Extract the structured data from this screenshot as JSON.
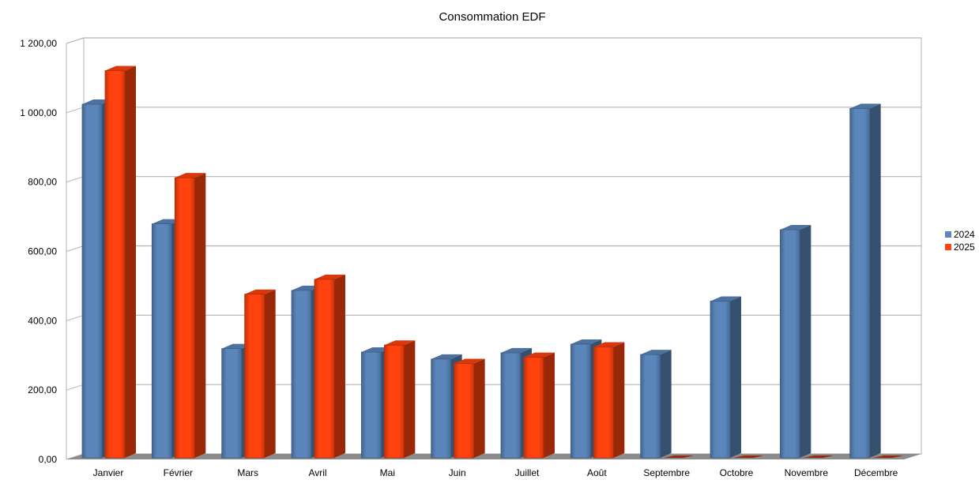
{
  "chart_data": {
    "type": "bar",
    "title": "Consommation EDF",
    "xlabel": "",
    "ylabel": "",
    "categories": [
      "Janvier",
      "Février",
      "Mars",
      "Avril",
      "Mai",
      "Juin",
      "Juillet",
      "Août",
      "Septembre",
      "Octobre",
      "Novembre",
      "Décembre"
    ],
    "series": [
      {
        "name": "2024",
        "color": "#5a86bb",
        "values": [
          1020,
          675,
          315,
          483,
          305,
          285,
          303,
          328,
          298,
          452,
          658,
          1008
        ]
      },
      {
        "name": "2025",
        "color": "#ff420e",
        "values": [
          1117,
          808,
          472,
          515,
          325,
          272,
          290,
          320,
          0,
          0,
          0,
          0
        ]
      }
    ],
    "ylim": [
      0,
      1200
    ],
    "yticks": [
      0,
      200,
      400,
      600,
      800,
      1000,
      1200
    ],
    "ytick_labels": [
      "0,00",
      "200,00",
      "400,00",
      "600,00",
      "800,00",
      "1 000,00",
      "1 200,00"
    ],
    "grid": true,
    "legend_position": "right",
    "style": "3d"
  }
}
